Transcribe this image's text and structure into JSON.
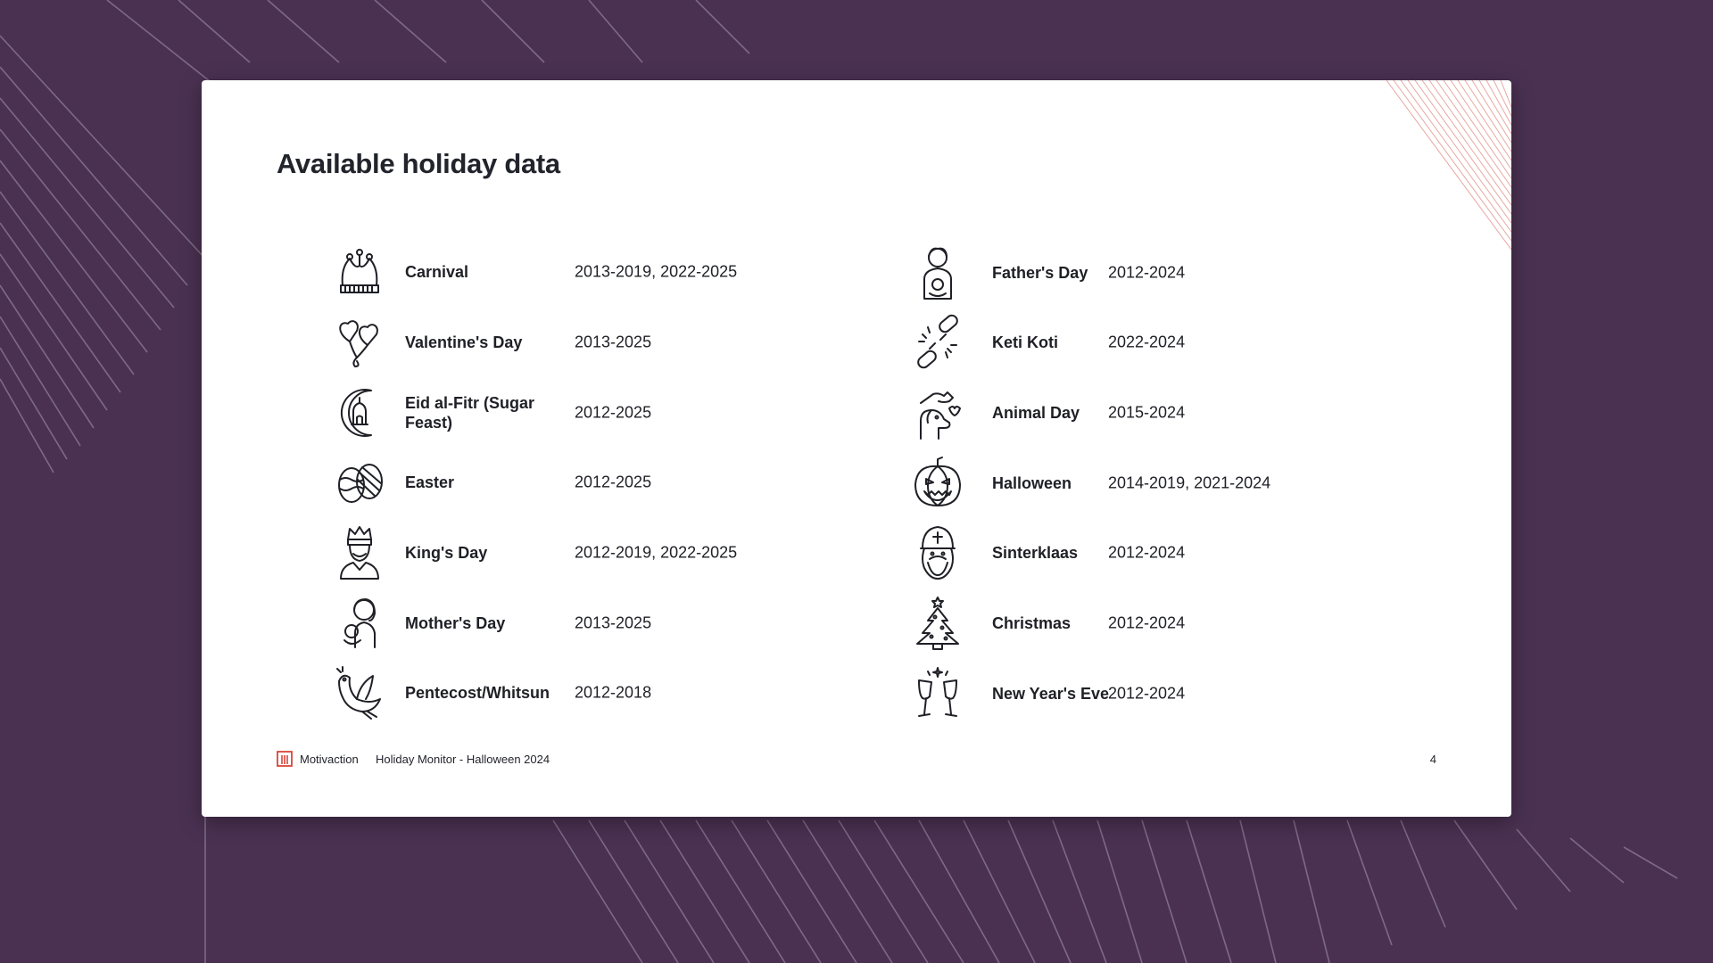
{
  "slide": {
    "title": "Available holiday data",
    "left_holidays": [
      {
        "name": "Carnival",
        "years": "2013-2019, 2022-2025",
        "icon": "jester-hat-icon"
      },
      {
        "name": "Valentine's Day",
        "years": "2013-2025",
        "icon": "heart-balloons-icon"
      },
      {
        "name": "Eid al-Fitr (Sugar Feast)",
        "years": "2012-2025",
        "icon": "crescent-mosque-icon"
      },
      {
        "name": "Easter",
        "years": "2012-2025",
        "icon": "easter-eggs-icon"
      },
      {
        "name": "King's Day",
        "years": "2012-2019, 2022-2025",
        "icon": "king-icon"
      },
      {
        "name": "Mother's Day",
        "years": "2013-2025",
        "icon": "mother-baby-icon"
      },
      {
        "name": "Pentecost/Whitsun",
        "years": "2012-2018",
        "icon": "dove-icon"
      }
    ],
    "right_holidays": [
      {
        "name": "Father's Day",
        "years": "2012-2024",
        "icon": "father-icon"
      },
      {
        "name": "Keti Koti",
        "years": "2022-2024",
        "icon": "broken-chain-icon"
      },
      {
        "name": "Animal Day",
        "years": "2015-2024",
        "icon": "dog-hand-icon"
      },
      {
        "name": "Halloween",
        "years": "2014-2019, 2021-2024",
        "icon": "pumpkin-icon"
      },
      {
        "name": "Sinterklaas",
        "years": "2012-2024",
        "icon": "sinterklaas-icon"
      },
      {
        "name": "Christmas",
        "years": "2012-2024",
        "icon": "christmas-tree-icon"
      },
      {
        "name": "New Year's Eve",
        "years": "2012-2024",
        "icon": "champagne-glasses-icon"
      }
    ]
  },
  "footer": {
    "brand": "Motivaction",
    "report": "Holiday Monitor - Halloween 2024",
    "page_number": "4",
    "logo_icon": "motivaction-logo-icon"
  },
  "colors": {
    "background": "#4a3152",
    "card": "#ffffff",
    "accent": "#d9453b",
    "text": "#1f2026"
  }
}
